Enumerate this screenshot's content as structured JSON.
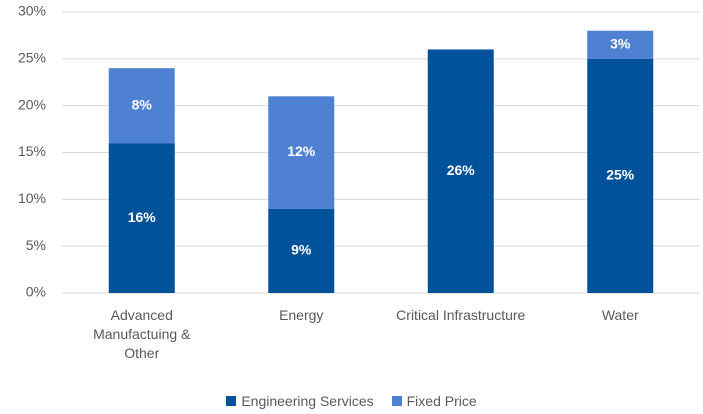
{
  "chart_data": {
    "type": "bar",
    "stacked": true,
    "categories": [
      "Advanced Manufactuing & Other",
      "Energy",
      "Critical Infrastructure",
      "Water"
    ],
    "series": [
      {
        "name": "Engineering Services",
        "color": "#00529b",
        "values": [
          16,
          9,
          26,
          25
        ],
        "value_labels": [
          "16%",
          "9%",
          "26%",
          "25%"
        ]
      },
      {
        "name": "Fixed Price",
        "color": "#4f81d2",
        "values": [
          8,
          12,
          null,
          3
        ],
        "value_labels": [
          "8%",
          "12%",
          null,
          "3%"
        ]
      }
    ],
    "ylim": [
      0,
      30
    ],
    "yticks": [
      {
        "value": 0,
        "label": "0%"
      },
      {
        "value": 5,
        "label": "5%"
      },
      {
        "value": 10,
        "label": "10%"
      },
      {
        "value": 15,
        "label": "15%"
      },
      {
        "value": 20,
        "label": "20%"
      },
      {
        "value": 25,
        "label": "25%"
      },
      {
        "value": 30,
        "label": "30%"
      }
    ],
    "grid": true,
    "legend": "bottom"
  }
}
